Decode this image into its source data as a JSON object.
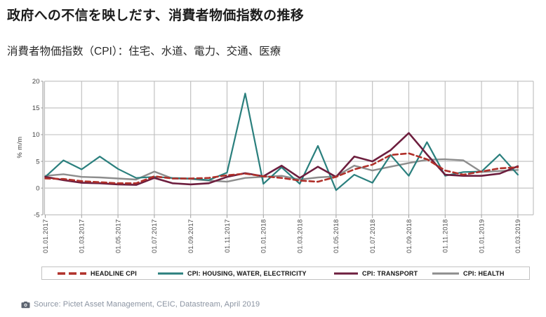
{
  "header": {
    "title": "政府への不信を映しだす、消費者物価指数の推移",
    "subtitle": "消費者物価指数（CPI）：住宅、水道、電力、交通、医療"
  },
  "chart_data": {
    "type": "line",
    "ylabel": "% m/m",
    "ylim": [
      -5,
      20
    ],
    "yticks": [
      20,
      15,
      10,
      5,
      0,
      -5
    ],
    "grid": true,
    "legend_position": "bottom",
    "n_points": 27,
    "tick_every": 2,
    "x_tick_labels": [
      "01.01.2017",
      "01.03.2017",
      "01.05.2017",
      "01.07.2017",
      "01.09.2017",
      "01.11.2017",
      "01.01.2018",
      "01.03.2018",
      "01.05.2018",
      "01.07.2018",
      "01.09.2018",
      "01.11.2018",
      "01.01.2019",
      "01.03.2019"
    ],
    "series": [
      {
        "name": "CPI: HEALTH",
        "color": "#8d8d8d",
        "dash": false,
        "width": 2.4,
        "values": [
          2.3,
          2.6,
          2.1,
          2.0,
          1.8,
          1.6,
          3.1,
          1.8,
          1.7,
          1.4,
          1.2,
          1.9,
          2.1,
          2.3,
          1.6,
          2.0,
          2.2,
          4.2,
          3.3,
          4.0,
          4.7,
          5.3,
          5.4,
          5.2,
          3.0,
          3.2,
          3.4
        ]
      },
      {
        "name": "CPI: HOUSING, WATER, ELECTRICITY",
        "color": "#2a7f7d",
        "dash": false,
        "width": 2.2,
        "values": [
          2.1,
          5.2,
          3.5,
          5.9,
          3.6,
          1.9,
          2.1,
          1.9,
          1.8,
          1.5,
          2.9,
          17.7,
          0.8,
          3.9,
          0.8,
          7.9,
          -0.4,
          2.5,
          1.0,
          6.2,
          2.3,
          8.6,
          2.3,
          3.0,
          3.1,
          6.3,
          2.5
        ]
      },
      {
        "name": "CPI: TRANSPORT",
        "color": "#6d1e3e",
        "dash": false,
        "width": 2.6,
        "values": [
          2.1,
          1.5,
          1.0,
          0.9,
          0.7,
          0.6,
          1.9,
          0.9,
          0.7,
          0.9,
          2.1,
          2.8,
          2.2,
          4.2,
          1.9,
          4.0,
          2.1,
          5.9,
          5.0,
          7.1,
          10.3,
          6.3,
          2.5,
          2.3,
          2.3,
          2.7,
          4.1
        ]
      },
      {
        "name": "HEADLINE CPI",
        "color": "#b0302a",
        "dash": true,
        "width": 2.6,
        "values": [
          1.8,
          1.7,
          1.3,
          1.1,
          0.9,
          0.9,
          2.2,
          1.8,
          1.8,
          1.9,
          2.4,
          2.7,
          2.2,
          1.9,
          1.4,
          1.2,
          2.1,
          3.5,
          4.4,
          6.2,
          6.5,
          5.4,
          3.3,
          2.5,
          3.1,
          3.7,
          3.9
        ]
      }
    ],
    "legend_order": [
      3,
      1,
      2,
      0
    ]
  },
  "source": {
    "icon": "camera-icon",
    "text": "Source: Pictet Asset Management, CEIC, Datastream, April 2019"
  }
}
